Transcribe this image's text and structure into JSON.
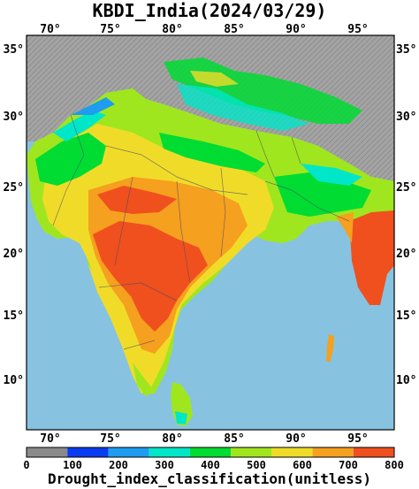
{
  "title": "KBDI_India(2024/03/29)",
  "lon_ticks": [
    "70°",
    "75°",
    "80°",
    "85°",
    "90°",
    "95°"
  ],
  "lat_ticks": [
    "35°",
    "30°",
    "25°",
    "20°",
    "15°",
    "10°"
  ],
  "extent": {
    "lon": [
      67.5,
      98.5
    ],
    "lat": [
      6.0,
      37.0
    ]
  },
  "colorbar": {
    "tick_labels": [
      "0",
      "100",
      "200",
      "300",
      "400",
      "500",
      "600",
      "700",
      "800"
    ],
    "class_colors": [
      "#8a8a8a",
      "#0a3cf0",
      "#1e9cf0",
      "#00e6c8",
      "#00dc32",
      "#a0e61e",
      "#f0dc28",
      "#f5a01e",
      "#f0501e"
    ],
    "caption": "Drought_index_classification(unitless)"
  },
  "colors": {
    "ocean": "#87c3e0",
    "terrain": "#9c9c9c",
    "high_drought": "#f0501e",
    "moderate": "#f5a01e"
  }
}
